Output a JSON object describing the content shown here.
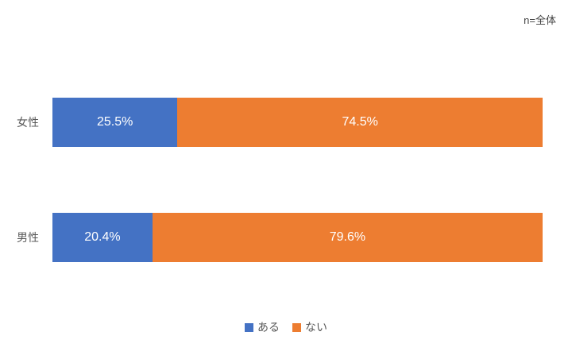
{
  "chart_data": {
    "type": "bar",
    "orientation": "horizontal",
    "stacked": true,
    "title": "",
    "annotation": "n=全体",
    "categories": [
      "女性",
      "男性"
    ],
    "series": [
      {
        "key": "aru",
        "name": "ある",
        "color": "#4472C4",
        "values": [
          25.5,
          20.4
        ],
        "labels": [
          "25.5%",
          "20.4%"
        ]
      },
      {
        "key": "nai",
        "name": "ない",
        "color": "#ED7D31",
        "values": [
          74.5,
          79.6
        ],
        "labels": [
          "74.5%",
          "79.6%"
        ]
      }
    ],
    "xlim": [
      0,
      100
    ],
    "grid": false,
    "axes_visible": false,
    "legend_position": "bottom",
    "value_label_color": "#FFFFFF",
    "category_label_color": "#595959"
  }
}
